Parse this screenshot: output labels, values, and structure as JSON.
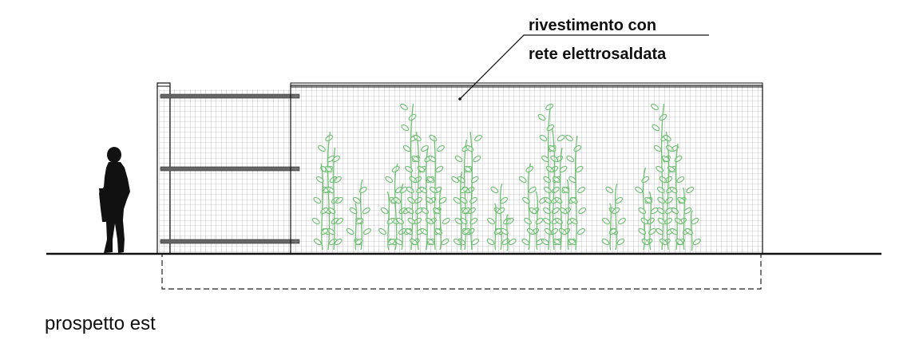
{
  "annotation": {
    "line1": "rivestimento con",
    "line2": "rete elettrosaldata"
  },
  "caption": "prospetto est",
  "colors": {
    "ink": "#111111",
    "mesh": "#9a9a9a",
    "plant": "#6fbf73",
    "background": "#ffffff"
  },
  "elements": {
    "figure": "human-silhouette-icon",
    "plants": "climbing-plant-icon"
  }
}
